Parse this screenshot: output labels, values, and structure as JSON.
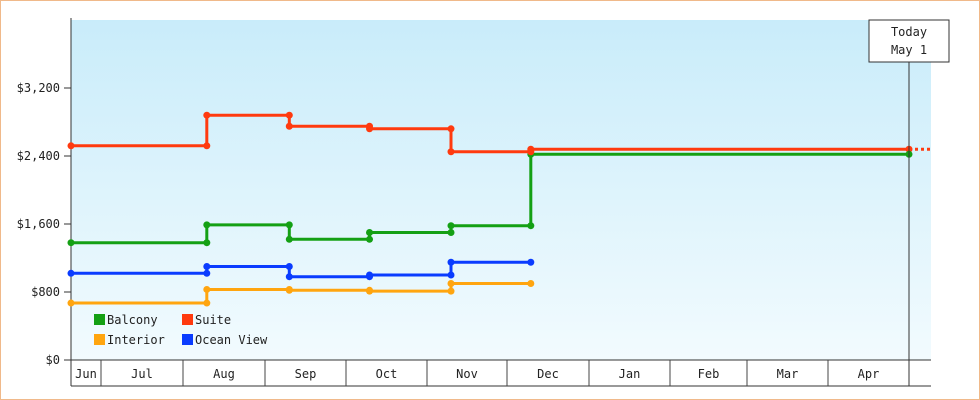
{
  "chart_data": {
    "type": "line",
    "step": true,
    "title": "",
    "xlabel": "",
    "ylabel": "",
    "ylim": [
      0,
      4000
    ],
    "yticks": [
      0,
      800,
      1600,
      2400,
      3200
    ],
    "ytick_labels": [
      "$0",
      "$800",
      "$1,600",
      "$2,400",
      "$3,200"
    ],
    "x_months": [
      "Jun",
      "Jul",
      "Aug",
      "Sep",
      "Oct",
      "Nov",
      "Dec",
      "Jan",
      "Feb",
      "Mar",
      "Apr"
    ],
    "grid": false,
    "legend_position": "bottom-left",
    "today_marker": {
      "line1": "Today",
      "line2": "May 1"
    },
    "series": [
      {
        "name": "Balcony",
        "color": "#14a014",
        "points": [
          [
            "Jun 1",
            1380
          ],
          [
            "Aug 10",
            1380
          ],
          [
            "Aug 10",
            1590
          ],
          [
            "Sep 10",
            1590
          ],
          [
            "Sep 10",
            1420
          ],
          [
            "Oct 10",
            1420
          ],
          [
            "Oct 10",
            1500
          ],
          [
            "Nov 10",
            1500
          ],
          [
            "Nov 10",
            1580
          ],
          [
            "Dec 10",
            1580
          ],
          [
            "Dec 10",
            2420
          ],
          [
            "May 1",
            2420
          ]
        ]
      },
      {
        "name": "Suite",
        "color": "#ff3a0f",
        "points": [
          [
            "Jun 1",
            2520
          ],
          [
            "Aug 10",
            2520
          ],
          [
            "Aug 10",
            2880
          ],
          [
            "Sep 10",
            2880
          ],
          [
            "Sep 10",
            2750
          ],
          [
            "Oct 10",
            2750
          ],
          [
            "Oct 10",
            2720
          ],
          [
            "Nov 10",
            2720
          ],
          [
            "Nov 10",
            2450
          ],
          [
            "Dec 10",
            2450
          ],
          [
            "Dec 10",
            2480
          ],
          [
            "May 1",
            2480
          ]
        ],
        "projected": true
      },
      {
        "name": "Interior",
        "color": "#ffa50f",
        "points": [
          [
            "Jun 1",
            670
          ],
          [
            "Aug 10",
            670
          ],
          [
            "Aug 10",
            830
          ],
          [
            "Sep 10",
            830
          ],
          [
            "Sep 10",
            820
          ],
          [
            "Oct 10",
            820
          ],
          [
            "Oct 10",
            810
          ],
          [
            "Nov 10",
            810
          ],
          [
            "Nov 10",
            900
          ],
          [
            "Dec 10",
            900
          ]
        ]
      },
      {
        "name": "Ocean View",
        "color": "#0a3cff",
        "points": [
          [
            "Jun 1",
            1020
          ],
          [
            "Aug 10",
            1020
          ],
          [
            "Aug 10",
            1100
          ],
          [
            "Sep 10",
            1100
          ],
          [
            "Sep 10",
            980
          ],
          [
            "Oct 10",
            980
          ],
          [
            "Oct 10",
            1000
          ],
          [
            "Nov 10",
            1000
          ],
          [
            "Nov 10",
            1150
          ],
          [
            "Dec 10",
            1150
          ]
        ]
      }
    ]
  }
}
